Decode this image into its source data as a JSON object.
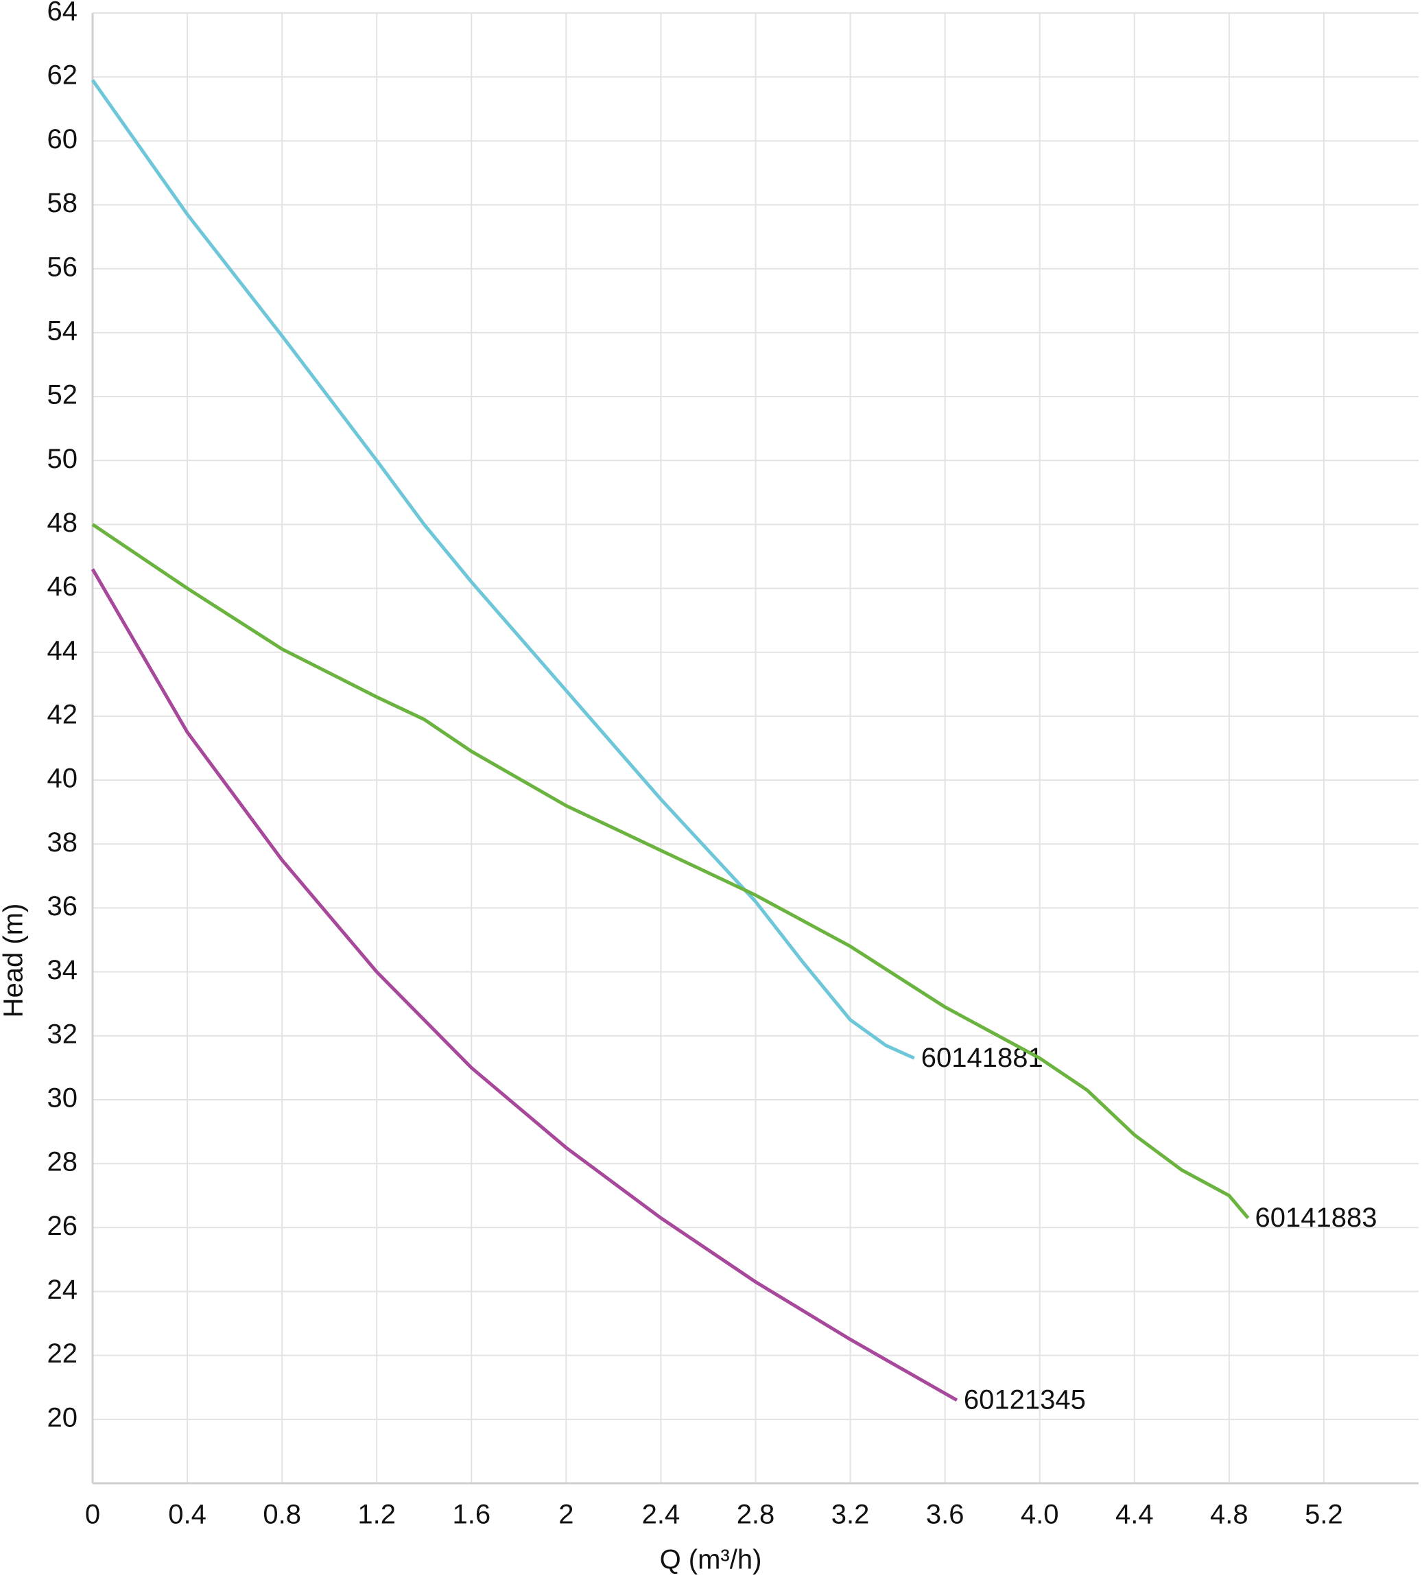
{
  "chart_data": {
    "type": "line",
    "x_label": "Q (m³/h)",
    "y_label": "Head (m)",
    "xlim": [
      0,
      5.6
    ],
    "ylim": [
      18,
      64
    ],
    "xticks": [
      0,
      0.4,
      0.8,
      1.2,
      1.6,
      2,
      2.4,
      2.8,
      3.2,
      3.6,
      {
        "value": 4,
        "label": "4.0"
      },
      4.4,
      4.8,
      5.2
    ],
    "yticks": [
      20,
      22,
      24,
      26,
      28,
      30,
      32,
      34,
      36,
      38,
      40,
      42,
      44,
      46,
      48,
      50,
      52,
      54,
      56,
      58,
      60,
      62,
      64
    ],
    "grid": true,
    "series": [
      {
        "name": "60141881",
        "color": "#6ec6d9",
        "x": [
          0,
          0.4,
          0.8,
          1.2,
          1.4,
          1.6,
          2,
          2.4,
          2.8,
          3.0,
          3.2,
          3.35,
          3.47
        ],
        "values": [
          61.9,
          57.7,
          53.9,
          50,
          48,
          46.2,
          42.8,
          39.4,
          36.2,
          34.3,
          32.5,
          31.7,
          31.3
        ]
      },
      {
        "name": "60141883",
        "color": "#6ab33e",
        "x": [
          0,
          0.4,
          0.8,
          1.2,
          1.4,
          1.6,
          2,
          2.4,
          2.8,
          3.2,
          3.6,
          4.0,
          4.2,
          4.4,
          4.6,
          4.8,
          4.88
        ],
        "values": [
          48,
          46,
          44.1,
          42.6,
          41.9,
          40.9,
          39.2,
          37.8,
          36.4,
          34.8,
          32.9,
          31.3,
          30.3,
          28.9,
          27.8,
          27,
          26.3
        ]
      },
      {
        "name": "60121345",
        "color": "#a8489a",
        "x": [
          0,
          0.4,
          0.8,
          1.2,
          1.6,
          2,
          2.4,
          2.8,
          3.2,
          3.65
        ],
        "values": [
          46.6,
          41.5,
          37.5,
          34,
          31,
          28.5,
          26.3,
          24.3,
          22.5,
          20.6
        ]
      }
    ]
  }
}
